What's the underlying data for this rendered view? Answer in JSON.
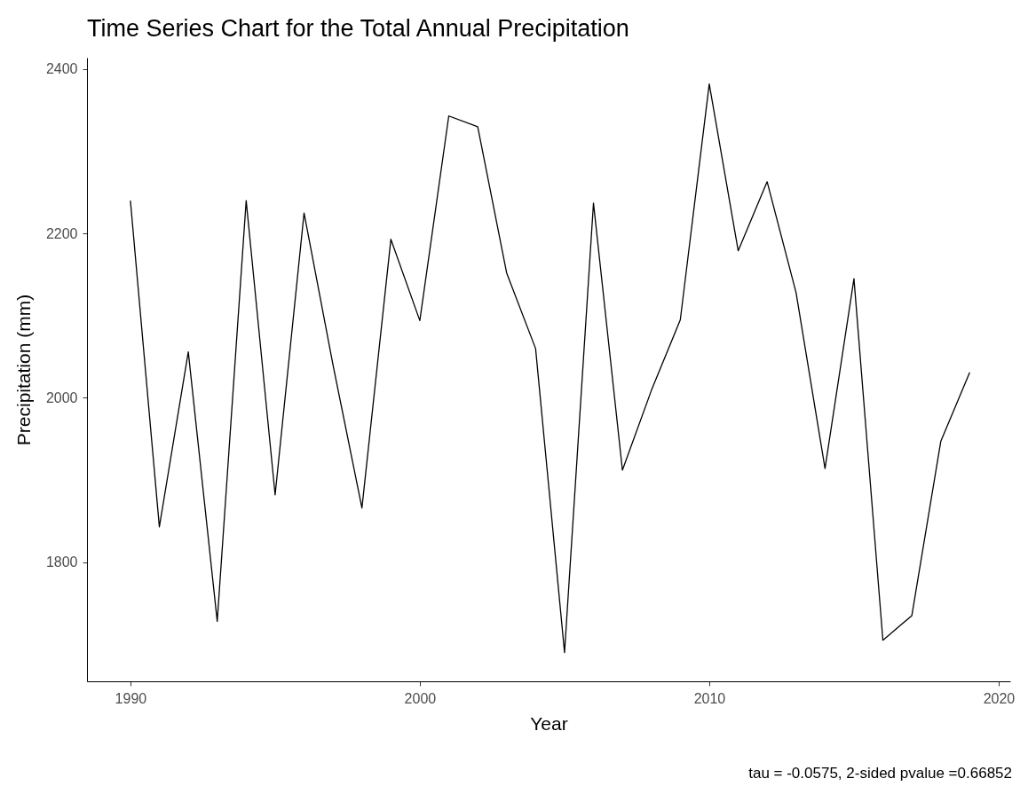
{
  "chart_data": {
    "type": "line",
    "title": "Time Series Chart for the Total Annual Precipitation",
    "xlabel": "Year",
    "ylabel": "Precipitation (mm)",
    "x": [
      1990,
      1991,
      1992,
      1993,
      1994,
      1995,
      1996,
      1997,
      1998,
      1999,
      2000,
      2001,
      2002,
      2003,
      2004,
      2005,
      2006,
      2007,
      2008,
      2009,
      2010,
      2011,
      2012,
      2013,
      2014,
      2015,
      2016,
      2017,
      2018,
      2019
    ],
    "series": [
      {
        "color": "#000000",
        "values": [
          2240,
          1843,
          2056,
          1728,
          2240,
          1882,
          2225,
          2040,
          1866,
          2193,
          2094,
          2343,
          2330,
          2152,
          2060,
          1690,
          2237,
          1912,
          2009,
          2095,
          2382,
          2179,
          2263,
          2128,
          1914,
          2145,
          1705,
          1735,
          1947,
          2031
        ]
      }
    ],
    "xlim": [
      1988.5,
      2020.4
    ],
    "xticks": [
      1990,
      2000,
      2010,
      2020
    ],
    "ylim": [
      1655,
      2414
    ],
    "yticks": [
      1800,
      2000,
      2200,
      2400
    ],
    "grid": false,
    "marker": "none",
    "line_style": "solid",
    "annotations": [
      "tau = -0.0575, 2-sided pvalue =0.66852"
    ]
  }
}
